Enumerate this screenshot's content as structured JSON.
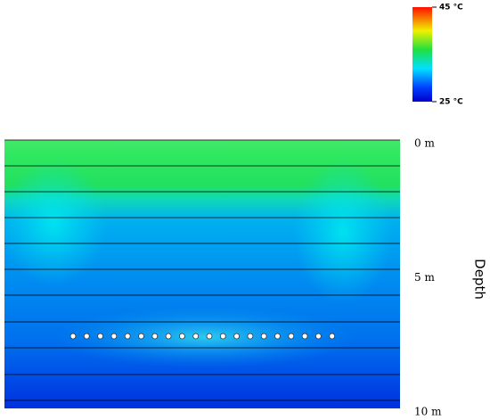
{
  "chart_data": {
    "type": "field",
    "y_label": "Depth",
    "ylim": [
      0,
      10
    ],
    "yticks": [
      {
        "value": 0,
        "label": "0 m"
      },
      {
        "value": 5,
        "label": "5 m"
      },
      {
        "value": 10,
        "label": "10 m"
      }
    ],
    "clim": [
      25,
      45
    ],
    "cticks": [
      {
        "value": 45,
        "label": "45 °C"
      },
      {
        "value": 25,
        "label": "25 °C"
      }
    ]
  }
}
